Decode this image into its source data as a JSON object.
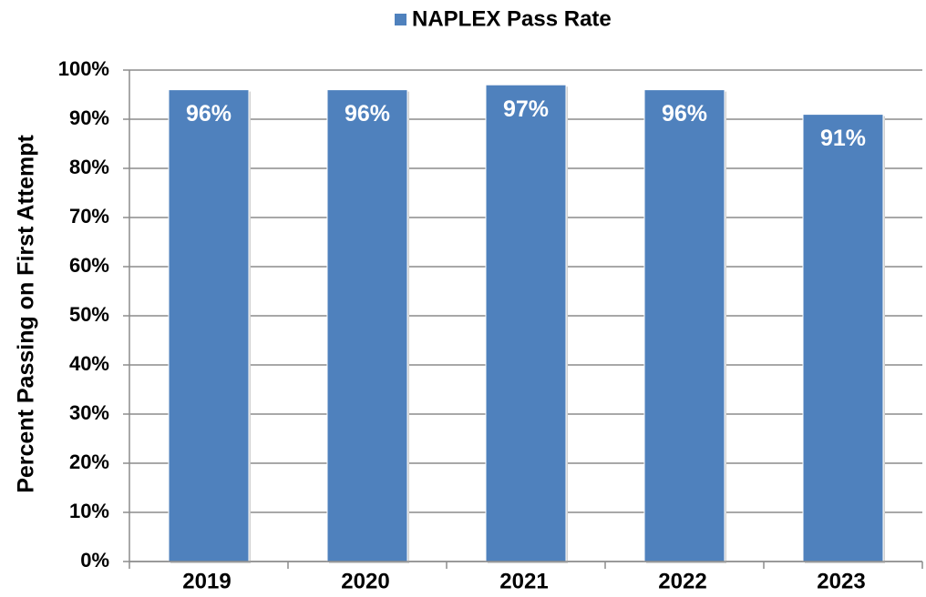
{
  "chart_data": {
    "type": "bar",
    "categories": [
      "2019",
      "2020",
      "2021",
      "2022",
      "2023"
    ],
    "series": [
      {
        "name": "NAPLEX Pass Rate",
        "color": "#4f81bd",
        "values": [
          96,
          96,
          97,
          96,
          91
        ],
        "value_labels": [
          "96%",
          "96%",
          "97%",
          "96%",
          "91%"
        ]
      }
    ],
    "y_label": "Percent Passing on First Attempt",
    "ylim": [
      0,
      100
    ],
    "yticks": [
      {
        "value": 0,
        "label": "0%"
      },
      {
        "value": 10,
        "label": "10%"
      },
      {
        "value": 20,
        "label": "20%"
      },
      {
        "value": 30,
        "label": "30%"
      },
      {
        "value": 40,
        "label": "40%"
      },
      {
        "value": 50,
        "label": "50%"
      },
      {
        "value": 60,
        "label": "60%"
      },
      {
        "value": 70,
        "label": "70%"
      },
      {
        "value": 80,
        "label": "80%"
      },
      {
        "value": 90,
        "label": "90%"
      },
      {
        "value": 100,
        "label": "100%"
      }
    ],
    "grid": true,
    "legend": "top"
  }
}
